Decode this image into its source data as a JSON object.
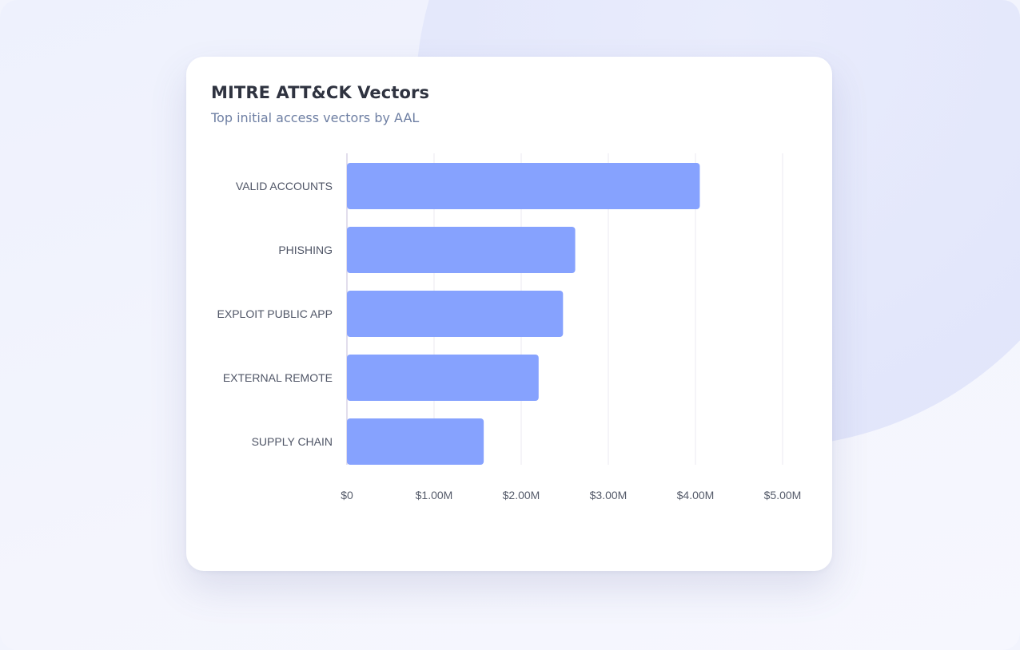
{
  "card": {
    "title": "MITRE ATT&CK Vectors",
    "subtitle": "Top initial access vectors by AAL"
  },
  "colors": {
    "bar": "#86a2fe",
    "grid": "#ebe8f1",
    "axis": "#d9d4e6",
    "category_label": "#4f5566",
    "tick_label": "#555b6a"
  },
  "chart_data": {
    "type": "bar",
    "orientation": "horizontal",
    "categories": [
      "VALID ACCOUNTS",
      "PHISHING",
      "EXPLOIT PUBLIC APP",
      "EXTERNAL REMOTE",
      "SUPPLY CHAIN"
    ],
    "values": [
      4050000,
      2620000,
      2480000,
      2200000,
      1570000
    ],
    "xlim": [
      0,
      5000000
    ],
    "x_ticks": [
      0,
      1000000,
      2000000,
      3000000,
      4000000,
      5000000
    ],
    "x_tick_labels": [
      "$0",
      "$1.00M",
      "$2.00M",
      "$3.00M",
      "$4.00M",
      "$5.00M"
    ],
    "grid": true,
    "legend": "none"
  }
}
